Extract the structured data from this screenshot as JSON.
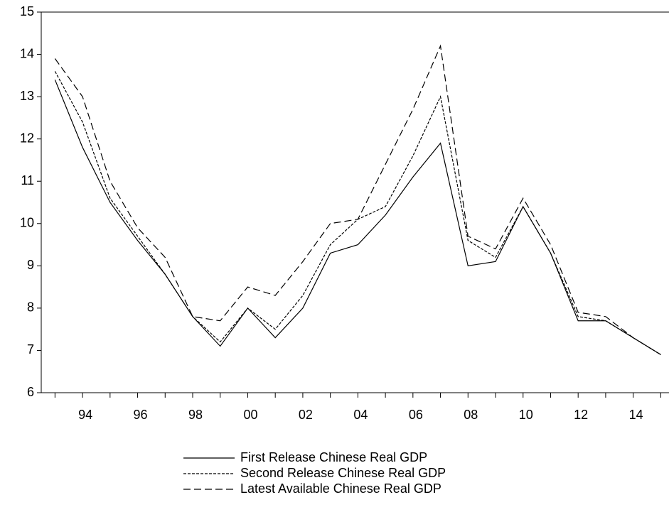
{
  "chart_data": {
    "type": "line",
    "x": [
      1993,
      1994,
      1995,
      1996,
      1997,
      1998,
      1999,
      2000,
      2001,
      2002,
      2003,
      2004,
      2005,
      2006,
      2007,
      2008,
      2009,
      2010,
      2011,
      2012,
      2013,
      2014,
      2015
    ],
    "series": [
      {
        "name": "First Release Chinese Real GDP",
        "color": "#000000",
        "dash": "none",
        "values": [
          13.4,
          11.8,
          10.5,
          9.6,
          8.8,
          7.8,
          7.1,
          8.0,
          7.3,
          8.0,
          9.3,
          9.5,
          10.2,
          11.1,
          11.9,
          9.0,
          9.1,
          10.4,
          9.3,
          7.7,
          7.7,
          7.3,
          6.9
        ]
      },
      {
        "name": "Second Release Chinese Real GDP",
        "color": "#000000",
        "dash": "4 2",
        "values": [
          13.6,
          12.4,
          10.6,
          9.7,
          8.8,
          7.8,
          7.2,
          8.0,
          7.5,
          8.3,
          9.5,
          10.1,
          10.4,
          11.6,
          13.0,
          9.6,
          9.2,
          10.4,
          9.3,
          7.8,
          7.7,
          7.3,
          6.9
        ]
      },
      {
        "name": "Latest Available Chinese Real GDP",
        "color": "#000000",
        "dash": "10 5",
        "values": [
          13.9,
          13.0,
          11.0,
          9.9,
          9.2,
          7.8,
          7.7,
          8.5,
          8.3,
          9.1,
          10.0,
          10.1,
          11.4,
          12.7,
          14.2,
          9.7,
          9.4,
          10.6,
          9.5,
          7.9,
          7.8,
          7.3,
          6.9
        ]
      }
    ],
    "xlim": [
      1992.5,
      2015.3
    ],
    "xticks": [
      {
        "value": 1994,
        "label": "94"
      },
      {
        "value": 1996,
        "label": "96"
      },
      {
        "value": 1998,
        "label": "98"
      },
      {
        "value": 2000,
        "label": "00"
      },
      {
        "value": 2002,
        "label": "02"
      },
      {
        "value": 2004,
        "label": "04"
      },
      {
        "value": 2006,
        "label": "06"
      },
      {
        "value": 2008,
        "label": "08"
      },
      {
        "value": 2010,
        "label": "10"
      },
      {
        "value": 2012,
        "label": "12"
      },
      {
        "value": 2014,
        "label": "14"
      }
    ],
    "xminorticks": [
      1993,
      1995,
      1997,
      1999,
      2001,
      2003,
      2005,
      2007,
      2009,
      2011,
      2013,
      2015
    ],
    "ylim": [
      6,
      15
    ],
    "yticks": [
      6,
      7,
      8,
      9,
      10,
      11,
      12,
      13,
      14,
      15
    ],
    "legend": "bottom"
  }
}
